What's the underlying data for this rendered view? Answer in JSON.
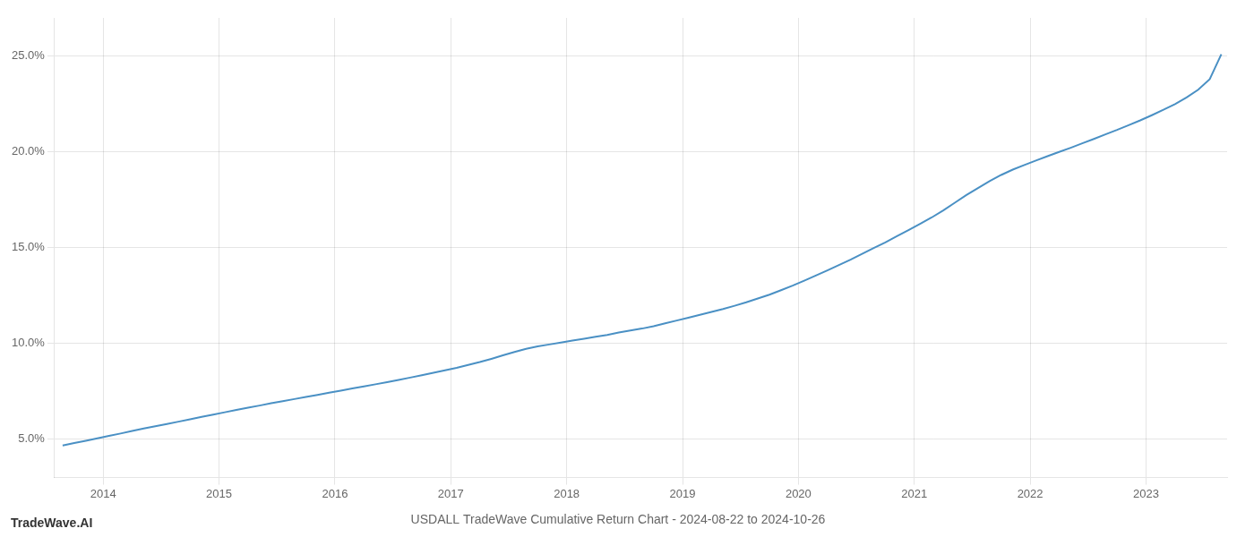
{
  "chart_data": {
    "type": "line",
    "title": "USDALL TradeWave Cumulative Return Chart - 2024-08-22 to 2024-10-26",
    "watermark": "TradeWave.AI",
    "color": "#4a90c4",
    "grid": true,
    "xlim": [
      2013.58,
      2023.7
    ],
    "xticks": [
      2014,
      2015,
      2016,
      2017,
      2018,
      2019,
      2020,
      2021,
      2022,
      2023
    ],
    "ylim": [
      0.03,
      0.27
    ],
    "yticks": [
      {
        "value": 0.05,
        "label": "5.0%"
      },
      {
        "value": 0.1,
        "label": "10.0%"
      },
      {
        "value": 0.15,
        "label": "15.0%"
      },
      {
        "value": 0.2,
        "label": "20.0%"
      },
      {
        "value": 0.25,
        "label": "25.0%"
      }
    ],
    "x": [
      2013.65,
      2013.75,
      2013.85,
      2013.95,
      2014.05,
      2014.15,
      2014.25,
      2014.35,
      2014.45,
      2014.55,
      2014.65,
      2014.75,
      2014.85,
      2014.95,
      2015.05,
      2015.15,
      2015.25,
      2015.35,
      2015.45,
      2015.55,
      2015.65,
      2015.75,
      2015.85,
      2015.95,
      2016.05,
      2016.15,
      2016.25,
      2016.35,
      2016.45,
      2016.55,
      2016.65,
      2016.75,
      2016.85,
      2016.95,
      2017.05,
      2017.15,
      2017.25,
      2017.35,
      2017.45,
      2017.55,
      2017.65,
      2017.75,
      2017.85,
      2017.95,
      2018.05,
      2018.15,
      2018.25,
      2018.35,
      2018.45,
      2018.55,
      2018.65,
      2018.75,
      2018.85,
      2018.95,
      2019.05,
      2019.15,
      2019.25,
      2019.35,
      2019.45,
      2019.55,
      2019.65,
      2019.75,
      2019.85,
      2019.95,
      2020.05,
      2020.15,
      2020.25,
      2020.35,
      2020.45,
      2020.55,
      2020.65,
      2020.75,
      2020.85,
      2020.95,
      2021.05,
      2021.15,
      2021.25,
      2021.35,
      2021.45,
      2021.55,
      2021.65,
      2021.75,
      2021.85,
      2021.95,
      2022.05,
      2022.15,
      2022.25,
      2022.35,
      2022.45,
      2022.55,
      2022.65,
      2022.75,
      2022.85,
      2022.95,
      2023.05,
      2023.15,
      2023.25,
      2023.35,
      2023.45,
      2023.55,
      2023.65
    ],
    "values": [
      0.0468,
      0.048,
      0.0492,
      0.0505,
      0.0518,
      0.053,
      0.0543,
      0.0556,
      0.0568,
      0.058,
      0.0592,
      0.0604,
      0.0617,
      0.0629,
      0.0641,
      0.0653,
      0.0665,
      0.0676,
      0.0688,
      0.0699,
      0.071,
      0.0721,
      0.0732,
      0.0743,
      0.0754,
      0.0765,
      0.0776,
      0.0787,
      0.0798,
      0.081,
      0.0822,
      0.0834,
      0.0847,
      0.086,
      0.0873,
      0.0888,
      0.0903,
      0.092,
      0.0938,
      0.0956,
      0.0972,
      0.0985,
      0.0995,
      0.1005,
      0.1015,
      0.1025,
      0.1035,
      0.1045,
      0.1057,
      0.1068,
      0.1078,
      0.109,
      0.1105,
      0.112,
      0.1135,
      0.115,
      0.1165,
      0.118,
      0.1197,
      0.1215,
      0.1235,
      0.1255,
      0.1278,
      0.1302,
      0.1328,
      0.1355,
      0.1382,
      0.141,
      0.1438,
      0.1468,
      0.1498,
      0.1528,
      0.156,
      0.1592,
      0.1625,
      0.1658,
      0.1695,
      0.1735,
      0.1775,
      0.1812,
      0.1848,
      0.188,
      0.1908,
      0.1932,
      0.1955,
      0.1978,
      0.2,
      0.2022,
      0.2045,
      0.2068,
      0.2092,
      0.2115,
      0.214,
      0.2165,
      0.2192,
      0.222,
      0.225,
      0.2285,
      0.2325,
      0.238,
      0.251
    ]
  }
}
